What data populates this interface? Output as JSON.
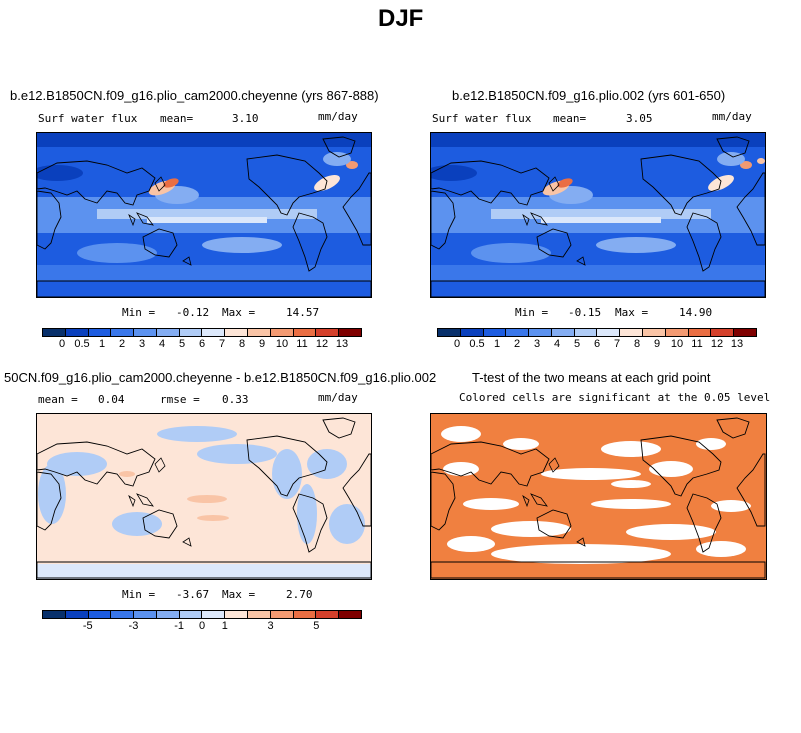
{
  "page_title": "DJF",
  "colors": {
    "diverging_14": [
      "#08306b",
      "#0a40bd",
      "#1d5ce0",
      "#3a77ea",
      "#5c92ef",
      "#84adf2",
      "#b0ccf6",
      "#dce8fb",
      "#fde5d7",
      "#f9c4a6",
      "#f39a72",
      "#ea6e43",
      "#d4402b",
      "#7f0000"
    ],
    "ttest_fill": "#f08040",
    "coast": "#000000"
  },
  "panels": {
    "p1": {
      "title": "b.e12.B1850CN.f09_g16.plio_cam2000.cheyenne (yrs 867-888)",
      "left_label": "Surf water flux",
      "mean_label": "mean=",
      "mean_value": "3.10",
      "units": "mm/day",
      "min_label": "Min =",
      "min_value": "-0.12",
      "max_label": "Max =",
      "max_value": "14.57",
      "cbar_ticks": [
        "0",
        "0.5",
        "1",
        "2",
        "3",
        "4",
        "5",
        "6",
        "7",
        "8",
        "9",
        "10",
        "11",
        "12",
        "13"
      ]
    },
    "p2": {
      "title": "b.e12.B1850CN.f09_g16.plio.002 (yrs 601-650)",
      "left_label": "Surf water flux",
      "mean_label": "mean=",
      "mean_value": "3.05",
      "units": "mm/day",
      "min_label": "Min =",
      "min_value": "-0.15",
      "max_label": "Max =",
      "max_value": "14.90",
      "cbar_ticks": [
        "0",
        "0.5",
        "1",
        "2",
        "3",
        "4",
        "5",
        "6",
        "7",
        "8",
        "9",
        "10",
        "11",
        "12",
        "13"
      ]
    },
    "p3": {
      "title": "50CN.f09_g16.plio_cam2000.cheyenne - b.e12.B1850CN.f09_g16.plio.002",
      "mean_label": "mean =",
      "mean_value": "0.04",
      "rmse_label": "rmse =",
      "rmse_value": "0.33",
      "units": "mm/day",
      "min_label": "Min =",
      "min_value": "-3.67",
      "max_label": "Max =",
      "max_value": "2.70",
      "cbar_ticks": [
        "-5",
        "-3",
        "-1",
        "0",
        "1",
        "3",
        "5"
      ]
    },
    "p4": {
      "title": "T-test of the two means at each grid point",
      "subtitle": "Colored cells are significant at the 0.05 level"
    }
  },
  "chart_data": [
    {
      "type": "heatmap",
      "title": "b.e12.B1850CN.f09_g16.plio_cam2000.cheyenne (yrs 867-888)",
      "variable": "Surf water flux",
      "units": "mm/day",
      "mean": 3.1,
      "min": -0.12,
      "max": 14.57,
      "colorbar_levels": [
        0,
        0.5,
        1,
        2,
        3,
        4,
        5,
        6,
        7,
        8,
        9,
        10,
        11,
        12,
        13
      ]
    },
    {
      "type": "heatmap",
      "title": "b.e12.B1850CN.f09_g16.plio.002 (yrs 601-650)",
      "variable": "Surf water flux",
      "units": "mm/day",
      "mean": 3.05,
      "min": -0.15,
      "max": 14.9,
      "colorbar_levels": [
        0,
        0.5,
        1,
        2,
        3,
        4,
        5,
        6,
        7,
        8,
        9,
        10,
        11,
        12,
        13
      ]
    },
    {
      "type": "heatmap",
      "title": "50CN.f09_g16.plio_cam2000.cheyenne - b.e12.B1850CN.f09_g16.plio.002",
      "units": "mm/day",
      "mean": 0.04,
      "rmse": 0.33,
      "min": -3.67,
      "max": 2.7,
      "colorbar_ticks": [
        -5,
        -3,
        -1,
        0,
        1,
        3,
        5
      ]
    },
    {
      "type": "heatmap",
      "title": "T-test of the two means at each grid point",
      "subtitle": "Colored cells are significant at the 0.05 level"
    }
  ]
}
